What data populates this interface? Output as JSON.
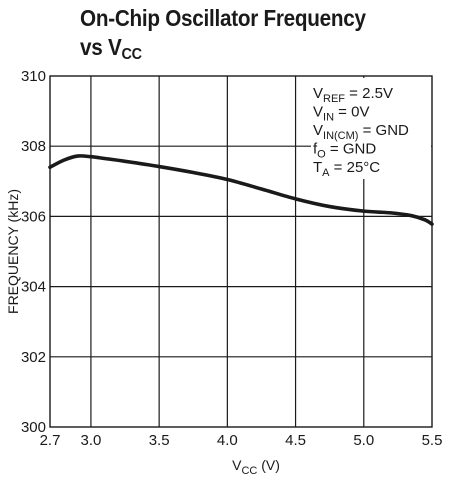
{
  "title": {
    "line1": "On-Chip Oscillator Frequency",
    "line2_prefix": "vs V",
    "line2_sub": "CC"
  },
  "chart_data": {
    "type": "line",
    "title": "On-Chip Oscillator Frequency vs VCC",
    "xlabel": "VCC (V)",
    "ylabel": "FREQUENCY (kHz)",
    "xlim": [
      2.7,
      5.5
    ],
    "ylim": [
      300,
      310
    ],
    "x_ticks": [
      2.7,
      3.0,
      3.5,
      4.0,
      4.5,
      5.0,
      5.5
    ],
    "x_tick_labels": [
      "2.7",
      "3.0",
      "3.5",
      "4.0",
      "4.5",
      "5.0",
      "5.5"
    ],
    "y_ticks": [
      300,
      302,
      304,
      306,
      308,
      310
    ],
    "y_tick_labels": [
      "300",
      "302",
      "304",
      "306",
      "308",
      "310"
    ],
    "x_grid": [
      3.0,
      3.5,
      4.0,
      4.5,
      5.0
    ],
    "y_grid": [
      302,
      304,
      306,
      308
    ],
    "grid": true,
    "series": [
      {
        "x": [
          2.7,
          2.8,
          2.9,
          3.0,
          3.1,
          3.25,
          3.5,
          3.75,
          4.0,
          4.25,
          4.5,
          4.75,
          5.0,
          5.2,
          5.35,
          5.45,
          5.5
        ],
        "values": [
          307.4,
          307.6,
          307.72,
          307.7,
          307.65,
          307.57,
          307.42,
          307.25,
          307.05,
          306.78,
          306.5,
          306.28,
          306.15,
          306.1,
          306.02,
          305.9,
          305.78
        ]
      }
    ],
    "annotations": [
      {
        "main": "V",
        "sub": "REF",
        "rest": " = 2.5V"
      },
      {
        "main": "V",
        "sub": "IN",
        "rest": " = 0V"
      },
      {
        "main": "V",
        "sub": "IN(CM)",
        "rest": " = GND"
      },
      {
        "main": "f",
        "sub": "O",
        "rest": " = GND"
      },
      {
        "main": "T",
        "sub": "A",
        "rest": " = 25°C"
      }
    ],
    "annotation_placement": "top-right",
    "line_color": "#1a1a1a",
    "grid_color": "#1a1a1a"
  }
}
